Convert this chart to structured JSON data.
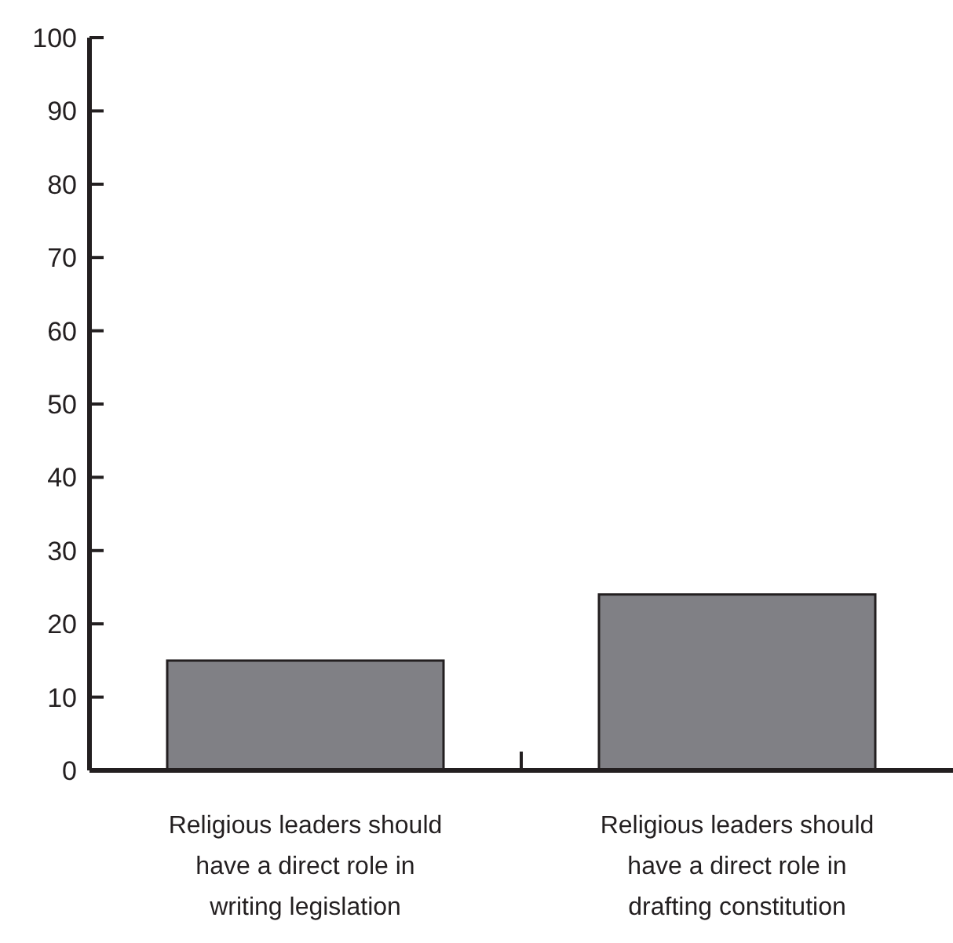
{
  "chart_data": {
    "type": "bar",
    "categories": [
      "Religious leaders should have a direct role in writing legislation",
      "Religious leaders should have a direct role in drafting constitution"
    ],
    "values": [
      15,
      24
    ],
    "color": "#808085",
    "ylim": [
      0,
      100
    ],
    "yticks": [
      0,
      10,
      20,
      30,
      40,
      50,
      60,
      70,
      80,
      90,
      100
    ],
    "grid": false,
    "legend": false
  }
}
